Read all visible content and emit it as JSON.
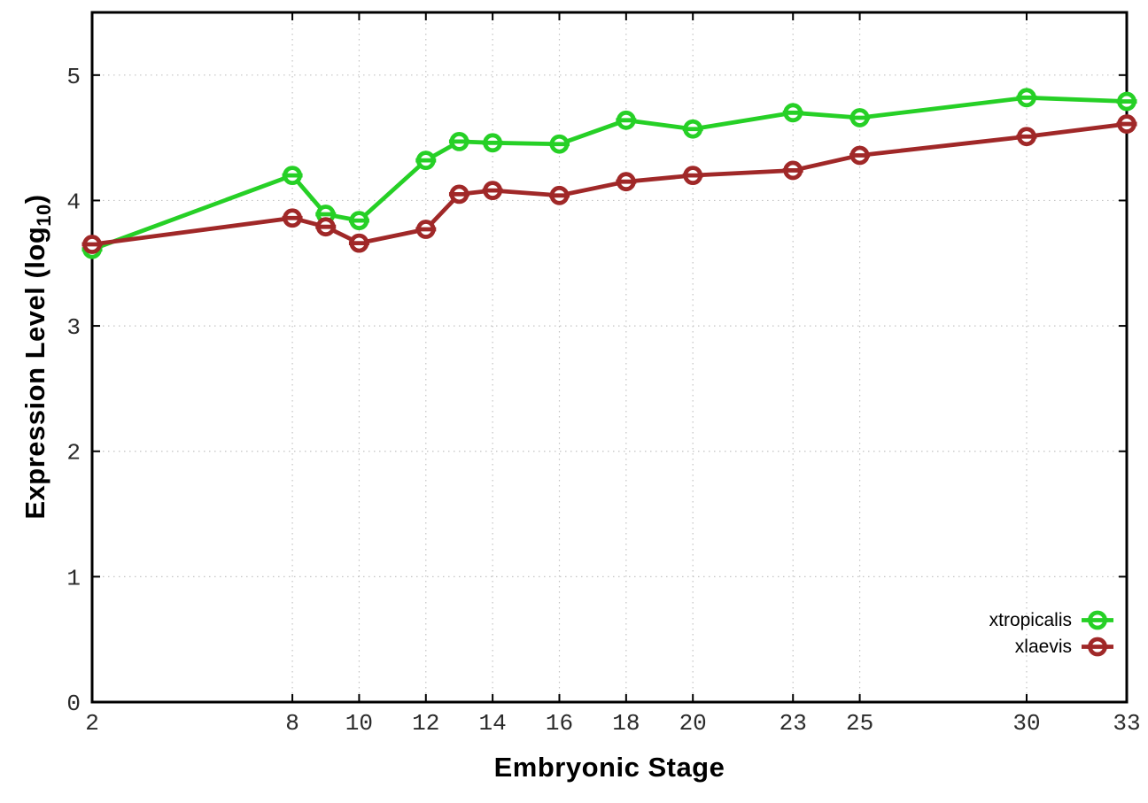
{
  "figure": {
    "background": "#ffffff",
    "ylabel_prefix": "Expression Level (log",
    "ylabel_sub": "10",
    "ylabel_suffix": ")",
    "xlabel": "Embryonic Stage"
  },
  "chart_data": {
    "type": "line",
    "title": "",
    "xlabel": "Embryonic Stage",
    "ylabel": "Expression Level (log10)",
    "x": [
      2,
      8,
      9,
      10,
      12,
      13,
      14,
      16,
      18,
      20,
      23,
      25,
      30,
      33
    ],
    "xticks": [
      2,
      8,
      10,
      12,
      14,
      16,
      18,
      20,
      23,
      25,
      30,
      33
    ],
    "yticks": [
      0,
      1,
      2,
      3,
      4,
      5
    ],
    "xlim": [
      2,
      33
    ],
    "ylim": [
      0,
      5.5
    ],
    "grid": true,
    "grid_color": "#c3c3c3",
    "axis_color": "#000000",
    "tick_label_color": "#2b2b2b",
    "legend_position": "inside-bottom-right",
    "marker": "open-circle-with-horizontal-line",
    "series": [
      {
        "name": "xtropicalis",
        "color": "#26d026",
        "values": [
          3.61,
          4.2,
          3.89,
          3.84,
          4.32,
          4.47,
          4.46,
          4.45,
          4.64,
          4.57,
          4.7,
          4.66,
          4.82,
          4.79
        ]
      },
      {
        "name": "xlaevis",
        "color": "#a02828",
        "values": [
          3.65,
          3.86,
          3.79,
          3.66,
          3.77,
          4.05,
          4.08,
          4.04,
          4.15,
          4.2,
          4.24,
          4.36,
          4.51,
          4.61
        ]
      }
    ]
  }
}
